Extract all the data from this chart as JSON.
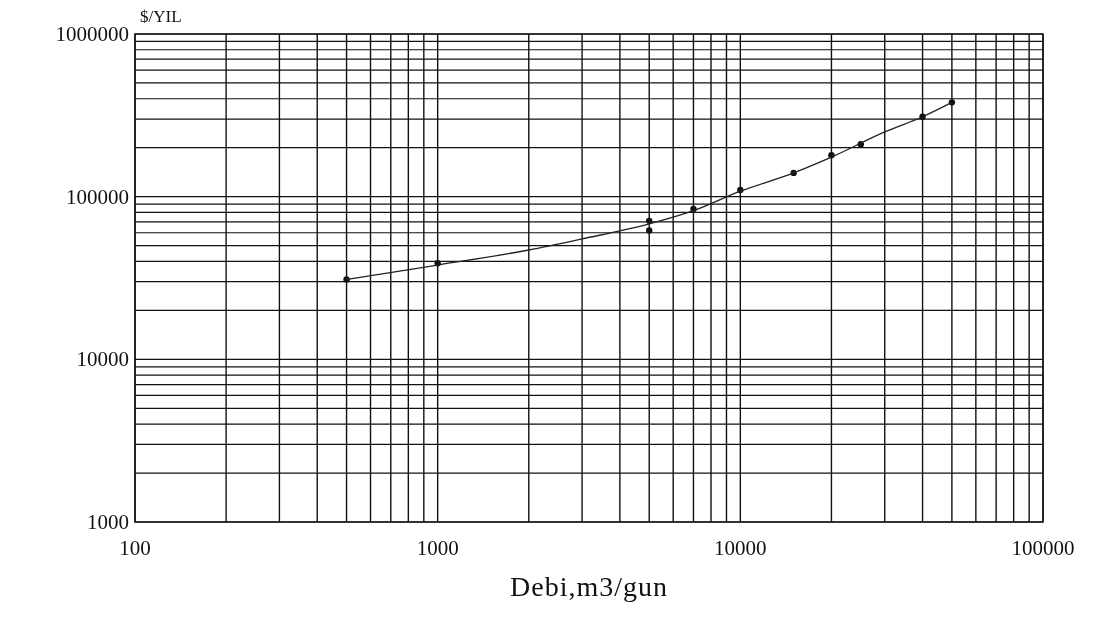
{
  "chart_data": {
    "type": "scatter",
    "xlabel": "Debi,m3/gun",
    "ylabel": "$/YIL",
    "log": "xy",
    "grid": true,
    "marker": "circle",
    "xlim": [
      100,
      100000
    ],
    "ylim": [
      1000,
      1000000
    ],
    "xticks": [
      100,
      {
        "value": 200,
        "label": null
      },
      {
        "value": 300,
        "label": null
      },
      {
        "value": 400,
        "label": null
      },
      {
        "value": 500,
        "label": null
      },
      {
        "value": 600,
        "label": null
      },
      {
        "value": 700,
        "label": null
      },
      {
        "value": 800,
        "label": null
      },
      {
        "value": 900,
        "label": null
      },
      1000,
      {
        "value": 2000,
        "label": null
      },
      {
        "value": 3000,
        "label": null
      },
      {
        "value": 4000,
        "label": null
      },
      {
        "value": 5000,
        "label": null
      },
      {
        "value": 6000,
        "label": null
      },
      {
        "value": 7000,
        "label": null
      },
      {
        "value": 8000,
        "label": null
      },
      {
        "value": 9000,
        "label": null
      },
      10000,
      {
        "value": 20000,
        "label": null
      },
      {
        "value": 30000,
        "label": null
      },
      {
        "value": 40000,
        "label": null
      },
      {
        "value": 50000,
        "label": null
      },
      {
        "value": 60000,
        "label": null
      },
      {
        "value": 70000,
        "label": null
      },
      {
        "value": 80000,
        "label": null
      },
      {
        "value": 90000,
        "label": null
      },
      100000
    ],
    "yticks": [
      1000,
      {
        "value": 2000,
        "label": null
      },
      {
        "value": 3000,
        "label": null
      },
      {
        "value": 4000,
        "label": null
      },
      {
        "value": 5000,
        "label": null
      },
      {
        "value": 6000,
        "label": null
      },
      {
        "value": 7000,
        "label": null
      },
      {
        "value": 8000,
        "label": null
      },
      {
        "value": 9000,
        "label": null
      },
      10000,
      {
        "value": 20000,
        "label": null
      },
      {
        "value": 30000,
        "label": null
      },
      {
        "value": 40000,
        "label": null
      },
      {
        "value": 50000,
        "label": null
      },
      {
        "value": 60000,
        "label": null
      },
      {
        "value": 70000,
        "label": null
      },
      {
        "value": 80000,
        "label": null
      },
      {
        "value": 90000,
        "label": null
      },
      100000,
      {
        "value": 200000,
        "label": null
      },
      {
        "value": 300000,
        "label": null
      },
      {
        "value": 400000,
        "label": null
      },
      {
        "value": 500000,
        "label": null
      },
      {
        "value": 600000,
        "label": null
      },
      {
        "value": 700000,
        "label": null
      },
      {
        "value": 800000,
        "label": null
      },
      {
        "value": 900000,
        "label": null
      },
      1000000
    ],
    "series": [
      {
        "color": "#111111",
        "x": [
          500,
          1000,
          5000,
          5000,
          7000,
          10000,
          15000,
          20000,
          25000,
          40000,
          50000
        ],
        "values": [
          31000,
          39000,
          71000,
          62000,
          84000,
          110000,
          140000,
          180000,
          210000,
          310000,
          380000
        ]
      },
      {
        "type": "line",
        "color": "#222222",
        "marker": "none",
        "x": [
          500,
          1000,
          2000,
          3000,
          5000,
          7000,
          10000,
          15000,
          20000,
          30000,
          40000,
          50000
        ],
        "values": [
          31000,
          38000,
          47000,
          55000,
          68000,
          82000,
          108000,
          140000,
          175000,
          250000,
          310000,
          380000
        ]
      }
    ]
  }
}
